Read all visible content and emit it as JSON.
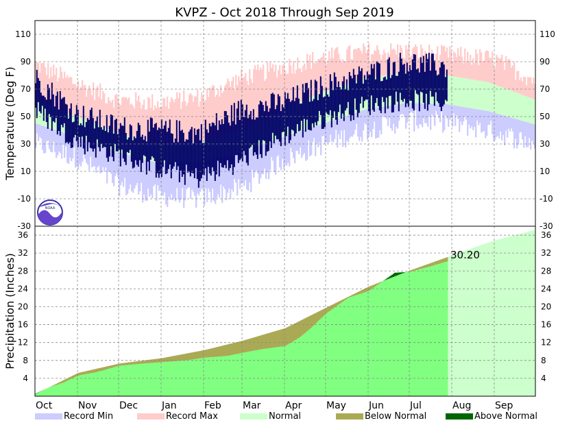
{
  "chart_data": [
    {
      "panel": "temperature",
      "type": "area",
      "title": "KVPZ - Oct 2018 Through Sep 2019",
      "ylabel": "Temperature (Deg F)",
      "ylim": [
        -30,
        120
      ],
      "yticks": [
        -30,
        -10,
        10,
        30,
        50,
        70,
        90,
        110
      ],
      "months": [
        "Oct",
        "Nov",
        "Dec",
        "Jan",
        "Feb",
        "Mar",
        "Apr",
        "May",
        "Jun",
        "Jul",
        "Aug",
        "Sep"
      ],
      "series_keys": {
        "record_max_anchors_day_value": [
          [
            0,
            88
          ],
          [
            30,
            74
          ],
          [
            60,
            62
          ],
          [
            90,
            60
          ],
          [
            120,
            64
          ],
          [
            150,
            78
          ],
          [
            180,
            86
          ],
          [
            210,
            93
          ],
          [
            240,
            97
          ],
          [
            270,
            98
          ],
          [
            300,
            95
          ],
          [
            334,
            92
          ],
          [
            365,
            76
          ]
        ],
        "normal_high_anchors_day_value": [
          [
            0,
            62
          ],
          [
            30,
            50
          ],
          [
            60,
            38
          ],
          [
            90,
            30
          ],
          [
            120,
            31
          ],
          [
            150,
            40
          ],
          [
            180,
            55
          ],
          [
            210,
            68
          ],
          [
            240,
            78
          ],
          [
            270,
            82
          ],
          [
            300,
            80
          ],
          [
            330,
            75
          ],
          [
            365,
            62
          ]
        ],
        "normal_low_anchors_day_value": [
          [
            0,
            45
          ],
          [
            30,
            35
          ],
          [
            60,
            24
          ],
          [
            90,
            16
          ],
          [
            120,
            17
          ],
          [
            150,
            24
          ],
          [
            180,
            35
          ],
          [
            210,
            45
          ],
          [
            240,
            55
          ],
          [
            270,
            60
          ],
          [
            300,
            59
          ],
          [
            330,
            54
          ],
          [
            365,
            44
          ]
        ],
        "record_min_anchors_day_value": [
          [
            0,
            30
          ],
          [
            30,
            20
          ],
          [
            60,
            0
          ],
          [
            90,
            -8
          ],
          [
            120,
            -10
          ],
          [
            150,
            -2
          ],
          [
            180,
            18
          ],
          [
            210,
            30
          ],
          [
            240,
            40
          ],
          [
            270,
            47
          ],
          [
            300,
            46
          ],
          [
            330,
            40
          ],
          [
            365,
            30
          ]
        ],
        "observed_high_anchors_day_value": [
          [
            0,
            78
          ],
          [
            30,
            52
          ],
          [
            60,
            42
          ],
          [
            90,
            40
          ],
          [
            120,
            38
          ],
          [
            150,
            55
          ],
          [
            180,
            60
          ],
          [
            210,
            72
          ],
          [
            240,
            80
          ],
          [
            270,
            90
          ],
          [
            300,
            86
          ]
        ],
        "observed_low_anchors_day_value": [
          [
            0,
            55
          ],
          [
            30,
            32
          ],
          [
            60,
            22
          ],
          [
            90,
            12
          ],
          [
            120,
            5
          ],
          [
            150,
            18
          ],
          [
            180,
            35
          ],
          [
            210,
            48
          ],
          [
            240,
            58
          ],
          [
            270,
            62
          ],
          [
            300,
            60
          ]
        ],
        "observed_end_day": 301
      }
    },
    {
      "panel": "precipitation",
      "type": "area",
      "ylabel": "Precipitation (Inches)",
      "ylim": [
        0,
        38
      ],
      "yticks": [
        4,
        8,
        12,
        16,
        20,
        24,
        28,
        32,
        36
      ],
      "annotation": "30.20",
      "observed_total_in": 30.2,
      "normal_cumulative_anchors_day_value": [
        [
          0,
          0.5
        ],
        [
          31,
          5.2
        ],
        [
          61,
          7.3
        ],
        [
          92,
          8.5
        ],
        [
          123,
          10.3
        ],
        [
          151,
          12.4
        ],
        [
          182,
          15.2
        ],
        [
          212,
          19.8
        ],
        [
          243,
          24.5
        ],
        [
          273,
          28.1
        ],
        [
          304,
          31.5
        ],
        [
          335,
          34.8
        ],
        [
          365,
          37.2
        ]
      ],
      "observed_cumulative_anchors_day_value": [
        [
          0,
          0.6
        ],
        [
          10,
          2.0
        ],
        [
          20,
          3.0
        ],
        [
          31,
          4.6
        ],
        [
          45,
          5.4
        ],
        [
          61,
          6.8
        ],
        [
          75,
          7.2
        ],
        [
          92,
          7.6
        ],
        [
          110,
          8.0
        ],
        [
          123,
          8.6
        ],
        [
          140,
          9.0
        ],
        [
          151,
          9.7
        ],
        [
          165,
          10.5
        ],
        [
          182,
          11.2
        ],
        [
          192,
          13.0
        ],
        [
          200,
          15.0
        ],
        [
          212,
          18.5
        ],
        [
          228,
          22.0
        ],
        [
          243,
          23.5
        ],
        [
          262,
          27.6
        ],
        [
          273,
          27.8
        ],
        [
          290,
          29.2
        ],
        [
          301,
          30.2
        ]
      ]
    }
  ],
  "legend": [
    {
      "label": "Record Min",
      "color": "#ccccff"
    },
    {
      "label": "Record Max",
      "color": "#ffcccc"
    },
    {
      "label": "Normal",
      "color": "#ccffcc"
    },
    {
      "label": "Below Normal",
      "color": "#aaaa55"
    },
    {
      "label": "Above Normal",
      "color": "#006600"
    }
  ],
  "colors": {
    "observed_temp": "#000066",
    "observed_precip": "#80ff80",
    "normal_precip": "#ccffcc"
  }
}
